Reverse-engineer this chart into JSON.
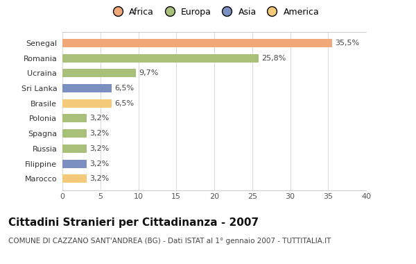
{
  "categories": [
    "Marocco",
    "Filippine",
    "Russia",
    "Spagna",
    "Polonia",
    "Brasile",
    "Sri Lanka",
    "Ucraina",
    "Romania",
    "Senegal"
  ],
  "values": [
    3.2,
    3.2,
    3.2,
    3.2,
    3.2,
    6.5,
    6.5,
    9.7,
    25.8,
    35.5
  ],
  "labels": [
    "3,2%",
    "3,2%",
    "3,2%",
    "3,2%",
    "3,2%",
    "6,5%",
    "6,5%",
    "9,7%",
    "25,8%",
    "35,5%"
  ],
  "colors": [
    "#F5C97A",
    "#7B8FC0",
    "#A8C07A",
    "#A8C07A",
    "#A8C07A",
    "#F5C97A",
    "#7B8FC0",
    "#A8C07A",
    "#A8C07A",
    "#F0A878"
  ],
  "legend_items": [
    {
      "label": "Africa",
      "color": "#F0A878"
    },
    {
      "label": "Europa",
      "color": "#A8C07A"
    },
    {
      "label": "Asia",
      "color": "#7B8FC0"
    },
    {
      "label": "America",
      "color": "#F5C97A"
    }
  ],
  "title": "Cittadini Stranieri per Cittadinanza - 2007",
  "subtitle": "COMUNE DI CAZZANO SANT'ANDREA (BG) - Dati ISTAT al 1° gennaio 2007 - TUTTITALIA.IT",
  "xlim": [
    0,
    40
  ],
  "xticks": [
    0,
    5,
    10,
    15,
    20,
    25,
    30,
    35,
    40
  ],
  "background_color": "#ffffff",
  "bar_height": 0.55,
  "title_fontsize": 11,
  "subtitle_fontsize": 7.5,
  "label_fontsize": 8,
  "tick_fontsize": 8,
  "legend_fontsize": 9
}
